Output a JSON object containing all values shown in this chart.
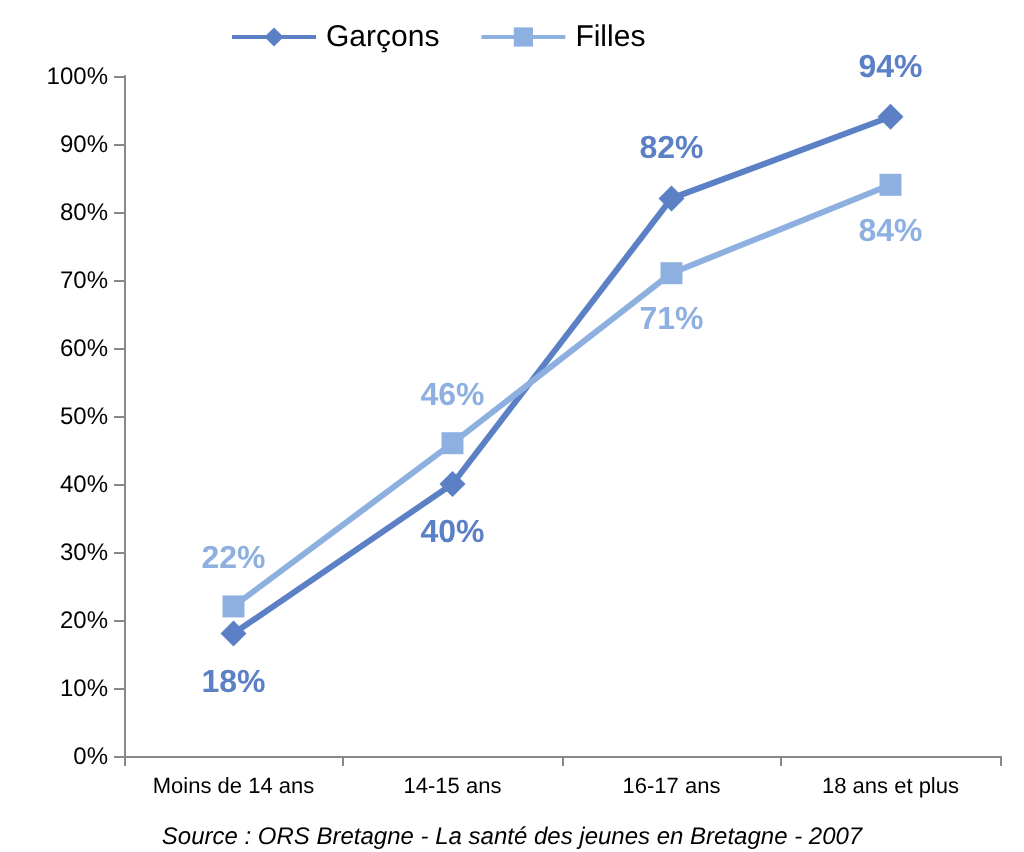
{
  "chart_data": {
    "type": "line",
    "categories": [
      "Moins de 14 ans",
      "14-15 ans",
      "16-17 ans",
      "18 ans et plus"
    ],
    "series": [
      {
        "name": "Garçons",
        "color": "#5b80c6",
        "marker": "diamond",
        "values": [
          18,
          40,
          82,
          94
        ],
        "value_labels": [
          "18%",
          "40%",
          "82%",
          "94%"
        ]
      },
      {
        "name": "Filles",
        "color": "#8eb0e0",
        "marker": "square",
        "values": [
          22,
          46,
          71,
          84
        ],
        "value_labels": [
          "22%",
          "46%",
          "71%",
          "84%"
        ]
      }
    ],
    "ylim": [
      0,
      100
    ],
    "yticks": [
      {
        "value": 0,
        "label": "0%"
      },
      {
        "value": 10,
        "label": "10%"
      },
      {
        "value": 20,
        "label": "20%"
      },
      {
        "value": 30,
        "label": "30%"
      },
      {
        "value": 40,
        "label": "40%"
      },
      {
        "value": 50,
        "label": "50%"
      },
      {
        "value": 60,
        "label": "60%"
      },
      {
        "value": 70,
        "label": "70%"
      },
      {
        "value": 80,
        "label": "80%"
      },
      {
        "value": 90,
        "label": "90%"
      },
      {
        "value": 100,
        "label": "100%"
      }
    ],
    "grid": false,
    "legend": "top",
    "line_style": "solid",
    "annotations": [
      "Source : ORS Bretagne - La santé des jeunes en Bretagne - 2007"
    ]
  }
}
